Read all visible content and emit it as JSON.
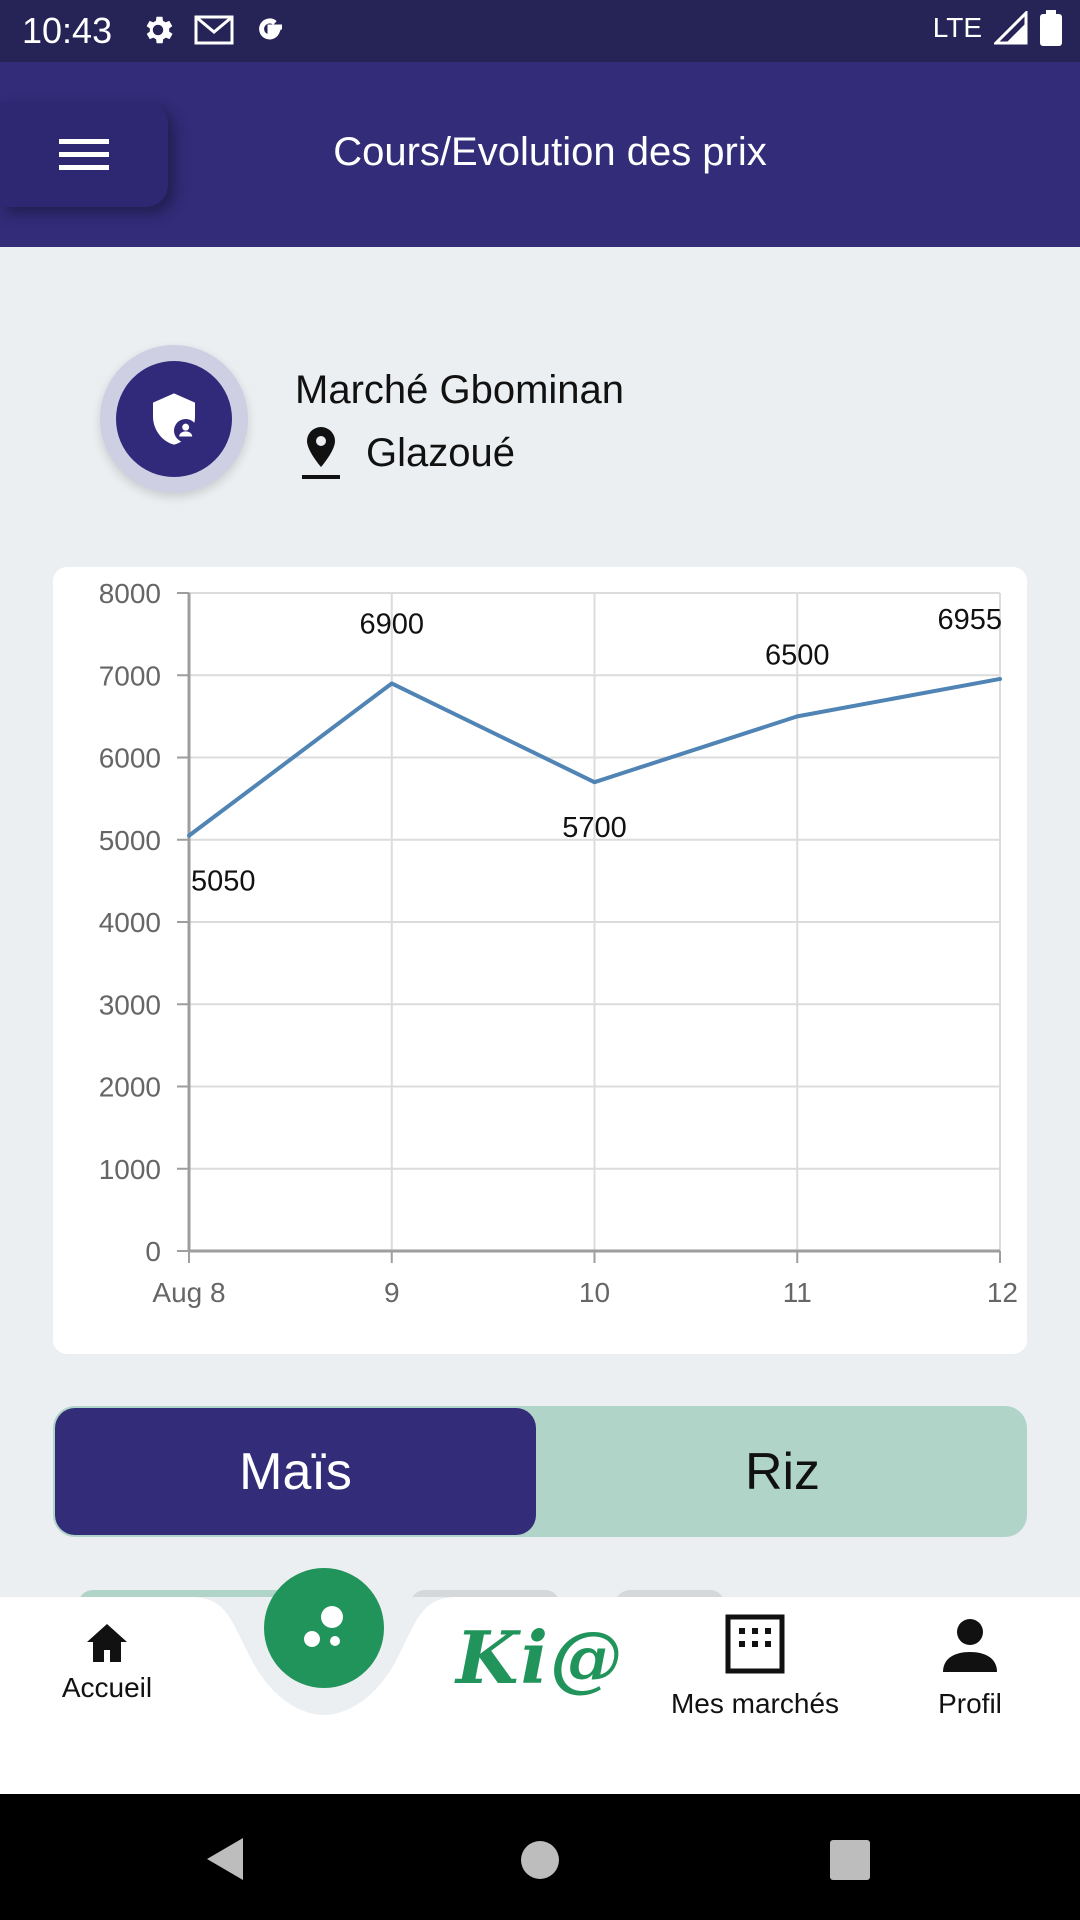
{
  "status_bar": {
    "time": "10:43",
    "network": "LTE",
    "left_icons": [
      "gear-icon",
      "gmail-icon",
      "google-icon"
    ],
    "right_icons": [
      "signal-icon",
      "battery-icon"
    ]
  },
  "app_bar": {
    "title": "Cours/Evolution des prix",
    "menu_icon": "hamburger-icon",
    "color": "#322c79"
  },
  "market": {
    "name": "Marché Gbominan",
    "location": "Glazoué",
    "avatar_icon": "shield-user-icon",
    "location_icon": "map-pin-icon"
  },
  "chart_data": {
    "type": "line",
    "title": "",
    "xlabel": "",
    "ylabel": "",
    "x": [
      "Aug 8",
      "9",
      "10",
      "11",
      "12"
    ],
    "series": [
      {
        "values": [
          5050,
          6900,
          5700,
          6500,
          6955
        ],
        "color": "#4f84b5"
      }
    ],
    "data_labels": [
      "5050",
      "6900",
      "5700",
      "6500",
      "6955"
    ],
    "ylim": [
      0,
      8000
    ],
    "yticks": [
      "0",
      "1000",
      "2000",
      "3000",
      "4000",
      "5000",
      "6000",
      "7000",
      "8000"
    ],
    "grid": true
  },
  "tabs": [
    {
      "label": "Maïs",
      "active": true
    },
    {
      "label": "Riz",
      "active": false
    }
  ],
  "bottom_nav": {
    "items": [
      {
        "label": "Accueil",
        "icon": "home-icon"
      },
      {
        "label": "Mes marchés",
        "icon": "grid-calendar-icon"
      },
      {
        "label": "Profil",
        "icon": "person-icon"
      }
    ],
    "center_logo": "Ki@",
    "fab_icon": "bubbles-icon",
    "fab_color": "#21945b"
  },
  "system_nav": {
    "buttons": [
      "back-icon",
      "home-circle-icon",
      "recents-icon"
    ]
  }
}
